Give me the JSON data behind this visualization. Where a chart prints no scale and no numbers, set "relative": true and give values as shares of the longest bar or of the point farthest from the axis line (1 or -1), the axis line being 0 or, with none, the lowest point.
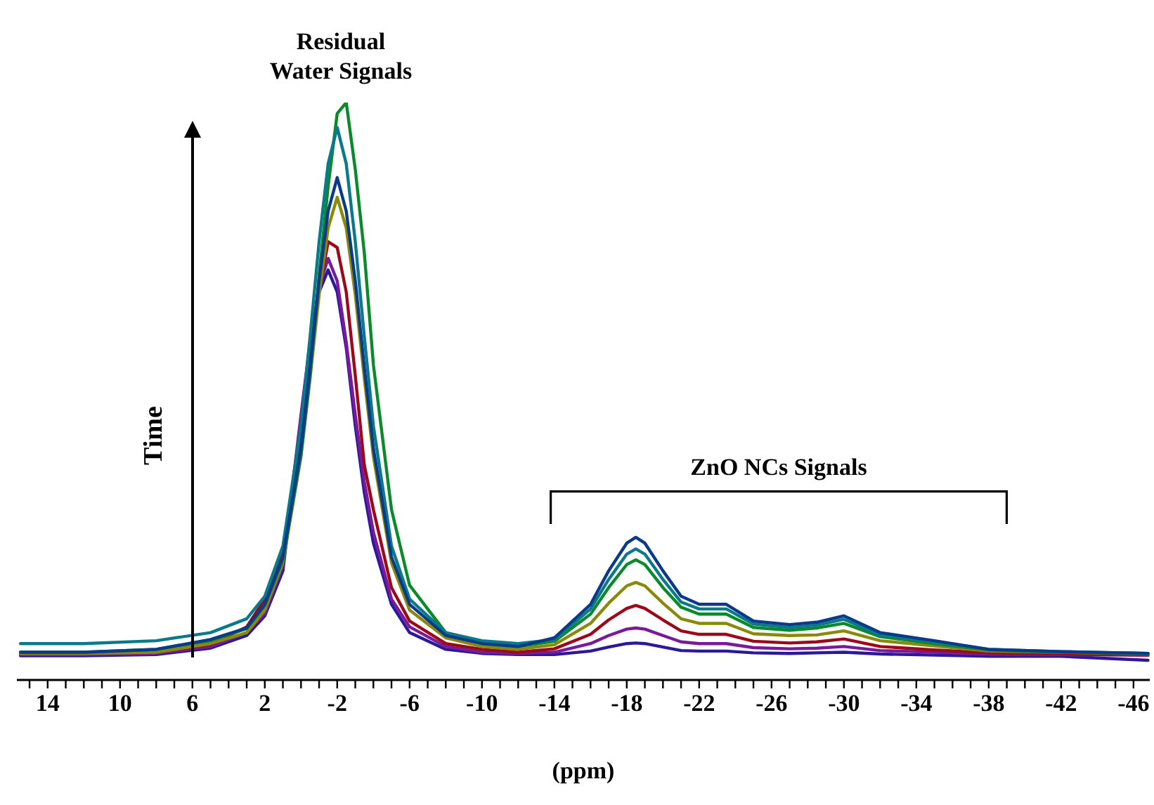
{
  "chart_data": {
    "type": "line",
    "relative": true,
    "xlabel": "(ppm)",
    "xlim": [
      15.7,
      -46.9
    ],
    "xticks": [
      {
        "value": 15,
        "label": null
      },
      14,
      {
        "value": 13,
        "label": null
      },
      {
        "value": 12,
        "label": null
      },
      {
        "value": 11,
        "label": null
      },
      10,
      {
        "value": 9,
        "label": null
      },
      {
        "value": 8,
        "label": null
      },
      {
        "value": 7,
        "label": null
      },
      6,
      {
        "value": 5,
        "label": null
      },
      {
        "value": 4,
        "label": null
      },
      {
        "value": 3,
        "label": null
      },
      2,
      {
        "value": 1,
        "label": null
      },
      {
        "value": 0,
        "label": null
      },
      {
        "value": -1,
        "label": null
      },
      -2,
      {
        "value": -3,
        "label": null
      },
      {
        "value": -4,
        "label": null
      },
      {
        "value": -5,
        "label": null
      },
      -6,
      {
        "value": -7,
        "label": null
      },
      {
        "value": -8,
        "label": null
      },
      {
        "value": -9,
        "label": null
      },
      -10,
      {
        "value": -11,
        "label": null
      },
      {
        "value": -12,
        "label": null
      },
      {
        "value": -13,
        "label": null
      },
      -14,
      {
        "value": -15,
        "label": null
      },
      {
        "value": -16,
        "label": null
      },
      {
        "value": -17,
        "label": null
      },
      -18,
      {
        "value": -19,
        "label": null
      },
      {
        "value": -20,
        "label": null
      },
      {
        "value": -21,
        "label": null
      },
      -22,
      {
        "value": -23,
        "label": null
      },
      {
        "value": -24,
        "label": null
      },
      {
        "value": -25,
        "label": null
      },
      -26,
      {
        "value": -27,
        "label": null
      },
      {
        "value": -28,
        "label": null
      },
      {
        "value": -29,
        "label": null
      },
      -30,
      {
        "value": -31,
        "label": null
      },
      {
        "value": -32,
        "label": null
      },
      {
        "value": -33,
        "label": null
      },
      -34,
      {
        "value": -35,
        "label": null
      },
      {
        "value": -36,
        "label": null
      },
      {
        "value": -37,
        "label": null
      },
      -38,
      {
        "value": -39,
        "label": null
      },
      {
        "value": -40,
        "label": null
      },
      {
        "value": -41,
        "label": null
      },
      -42,
      {
        "value": -43,
        "label": null
      },
      {
        "value": -44,
        "label": null
      },
      {
        "value": -45,
        "label": null
      },
      -46
    ],
    "x": [
      15.5,
      12,
      8,
      5,
      3,
      2,
      1,
      0,
      -0.5,
      -1,
      -1.5,
      -2,
      -2.5,
      -3,
      -3.5,
      -4,
      -5,
      -6,
      -8,
      -10,
      -12,
      -14,
      -16,
      -17,
      -18,
      -18.5,
      -19,
      -20,
      -21,
      -22,
      -23.5,
      -25,
      -27,
      -28.5,
      -30,
      -32,
      -35,
      -38,
      -42,
      -46.8
    ],
    "series": [
      {
        "color": "#2a1a9a",
        "values": [
          0.042,
          0.042,
          0.044,
          0.055,
          0.077,
          0.111,
          0.189,
          0.449,
          0.575,
          0.672,
          0.71,
          0.672,
          0.575,
          0.44,
          0.324,
          0.237,
          0.131,
          0.082,
          0.053,
          0.046,
          0.044,
          0.044,
          0.05,
          0.057,
          0.063,
          0.064,
          0.063,
          0.057,
          0.051,
          0.05,
          0.05,
          0.047,
          0.046,
          0.047,
          0.048,
          0.045,
          0.043,
          0.041,
          0.041,
          0.034
        ]
      },
      {
        "color": "#7a1a9a",
        "values": [
          0.044,
          0.044,
          0.046,
          0.058,
          0.082,
          0.116,
          0.198,
          0.459,
          0.585,
          0.681,
          0.73,
          0.691,
          0.585,
          0.459,
          0.343,
          0.256,
          0.14,
          0.092,
          0.058,
          0.048,
          0.046,
          0.048,
          0.063,
          0.077,
          0.088,
          0.09,
          0.088,
          0.077,
          0.066,
          0.063,
          0.063,
          0.056,
          0.054,
          0.055,
          0.058,
          0.051,
          0.048,
          0.045,
          0.044,
          0.043
        ]
      },
      {
        "color": "#9a0a1a",
        "values": [
          0.046,
          0.046,
          0.048,
          0.061,
          0.092,
          0.14,
          0.218,
          0.43,
          0.565,
          0.672,
          0.759,
          0.749,
          0.672,
          0.527,
          0.372,
          0.295,
          0.16,
          0.102,
          0.063,
          0.053,
          0.048,
          0.054,
          0.079,
          0.104,
          0.124,
          0.129,
          0.124,
          0.104,
          0.085,
          0.079,
          0.079,
          0.067,
          0.064,
          0.066,
          0.071,
          0.058,
          0.052,
          0.047,
          0.045,
          0.043
        ]
      },
      {
        "color": "#8a8a0a",
        "values": [
          0.046,
          0.046,
          0.048,
          0.063,
          0.082,
          0.121,
          0.203,
          0.387,
          0.522,
          0.667,
          0.783,
          0.836,
          0.783,
          0.667,
          0.522,
          0.387,
          0.203,
          0.121,
          0.073,
          0.058,
          0.053,
          0.061,
          0.098,
          0.133,
          0.163,
          0.169,
          0.163,
          0.133,
          0.106,
          0.098,
          0.098,
          0.08,
          0.077,
          0.078,
          0.085,
          0.068,
          0.059,
          0.05,
          0.048,
          0.045
        ]
      },
      {
        "color": "#0a8a2a",
        "values": [
          0.048,
          0.048,
          0.053,
          0.068,
          0.089,
          0.129,
          0.208,
          0.391,
          0.527,
          0.701,
          0.855,
          0.981,
          1,
          0.884,
          0.739,
          0.546,
          0.295,
          0.164,
          0.082,
          0.063,
          0.058,
          0.067,
          0.114,
          0.16,
          0.2,
          0.208,
          0.2,
          0.16,
          0.126,
          0.114,
          0.114,
          0.091,
          0.086,
          0.09,
          0.098,
          0.075,
          0.063,
          0.052,
          0.048,
          0.046
        ]
      },
      {
        "color": "#0a7a8a",
        "values": [
          0.063,
          0.063,
          0.068,
          0.082,
          0.106,
          0.145,
          0.232,
          0.44,
          0.594,
          0.759,
          0.894,
          0.957,
          0.894,
          0.759,
          0.594,
          0.44,
          0.232,
          0.14,
          0.082,
          0.068,
          0.063,
          0.07,
          0.123,
          0.174,
          0.218,
          0.227,
          0.218,
          0.174,
          0.135,
          0.123,
          0.123,
          0.097,
          0.091,
          0.095,
          0.105,
          0.078,
          0.066,
          0.053,
          0.049,
          0.046
        ]
      },
      {
        "color": "#0a3a8a",
        "values": [
          0.048,
          0.048,
          0.053,
          0.07,
          0.09,
          0.131,
          0.213,
          0.401,
          0.541,
          0.691,
          0.812,
          0.87,
          0.812,
          0.691,
          0.541,
          0.401,
          0.213,
          0.131,
          0.077,
          0.063,
          0.058,
          0.073,
          0.131,
          0.189,
          0.237,
          0.247,
          0.237,
          0.189,
          0.145,
          0.131,
          0.131,
          0.102,
          0.096,
          0.1,
          0.111,
          0.082,
          0.068,
          0.053,
          0.049,
          0.046
        ]
      }
    ],
    "annotations": [
      {
        "text": "Residual Water Signals",
        "x": -2.2,
        "y": 1
      },
      "Time",
      "ZnO NCs Signals"
    ]
  }
}
